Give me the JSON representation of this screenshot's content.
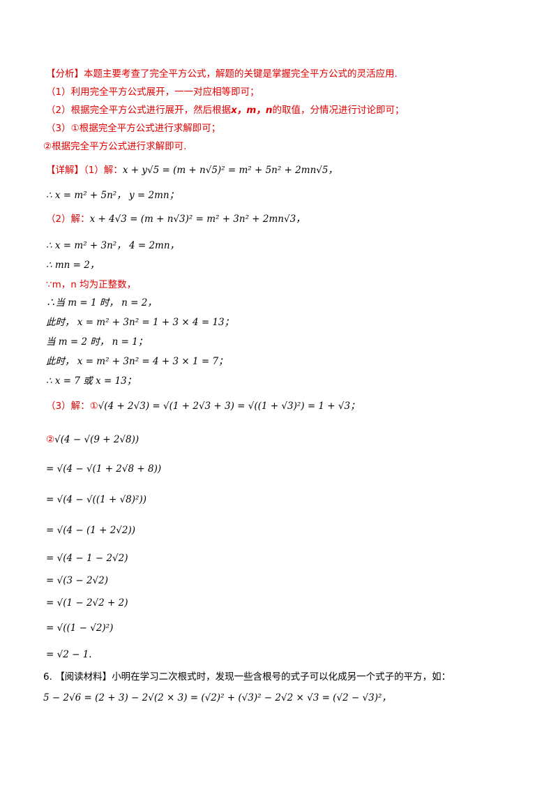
{
  "analysis": {
    "heading": "【分析】",
    "intro": "本题主要考查了完全平方公式，解题的关键是掌握完全平方公式的灵活应用.",
    "step1": "（1）利用完全平方公式展开，一一对应相等即可；",
    "step2_prefix": "（2）根据完全平方公式进行展开，然后根据",
    "step2_vars": "x，m，n",
    "step2_suffix": "的取值，分情况进行讨论即可；",
    "step3": "（3）①根据完全平方公式进行求解即可；",
    "step4": "②根据完全平方公式进行求解即可."
  },
  "detail": {
    "heading": "【详解】",
    "p1_label": "（1）解：",
    "p1_eq": "x + y√5 = (m + n√5)² = m² + 5n² + 2mn√5，",
    "p1_res": "∴ x = m² + 5n²，  y = 2mn；",
    "p2_label": "（2）解：",
    "p2_eq": "x + 4√3 = (m + n√3)² = m² + 3n² + 2mn√3，",
    "p2_res": "∴ x = m² + 3n²，  4 = 2mn，",
    "p2_mn": "∴ mn = 2，",
    "p2_int": "∵m，n 均为正整数，",
    "p2_c1": "∴当 m = 1 时，  n = 2，",
    "p2_c1v": "此时，  x = m² + 3n² = 1 + 3 × 4 = 13；",
    "p2_c2": "当 m = 2 时，  n = 1；",
    "p2_c2v": "此时，  x = m² + 3n² = 4 + 3 × 1 = 7；",
    "p2_ans": "∴ x = 7 或 x = 13；",
    "p3_label": "（3）解：①",
    "p3_eq": "√(4 + 2√3) = √(1 + 2√3 + 3) = √((1 + √3)²) = 1 + √3；",
    "p3_b_label": "②",
    "p3_b0": "√(4 − √(9 + 2√8))",
    "p3_b1": "= √(4 − √(1 + 2√8 + 8))",
    "p3_b2": "= √(4 − √((1 + √8)²))",
    "p3_b3": "= √(4 − (1 + 2√2))",
    "p3_b4": "= √(4 − 1 − 2√2)",
    "p3_b5": "= √(3 − 2√2)",
    "p3_b6": "= √(1 − 2√2 + 2)",
    "p3_b7": "= √((1 − √2)²)",
    "p3_b8": "= √2 − 1."
  },
  "problem6": {
    "number": "6.",
    "heading": "【阅读材料】",
    "text": "小明在学习二次根式时，发现一些含根号的式子可以化成另一个式子的平方，如：",
    "eq": "5 − 2√6 = (2 + 3) − 2√(2 × 3) = (√2)² + (√3)² − 2√2 × √3 = (√2 − √3)²，"
  },
  "colors": {
    "red": "#e00000",
    "black": "#000000"
  }
}
